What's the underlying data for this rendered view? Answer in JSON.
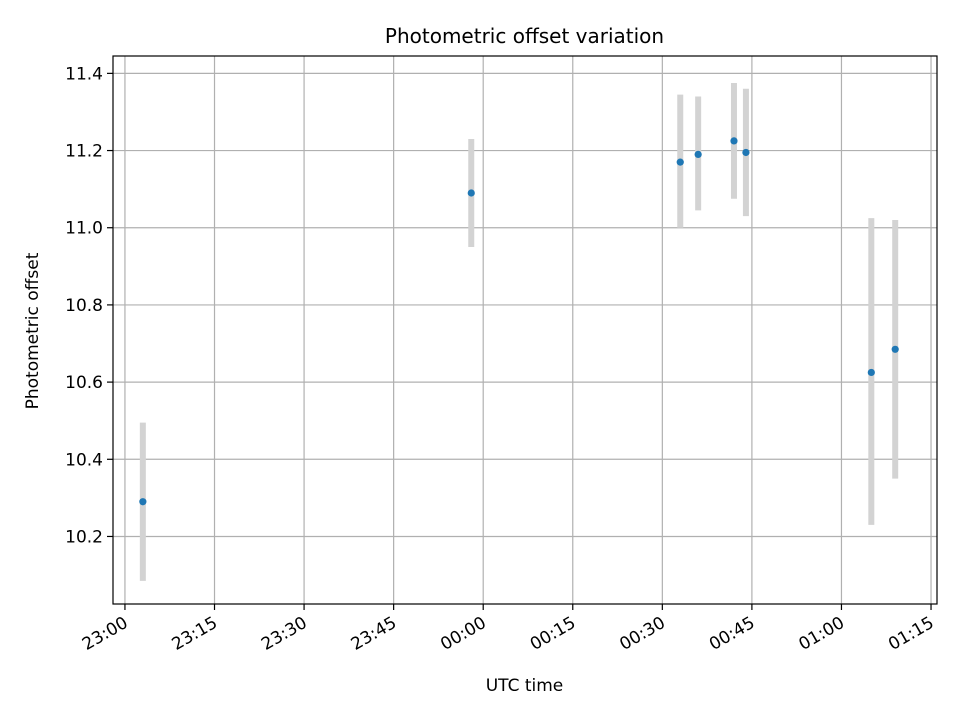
{
  "chart_data": {
    "type": "scatter",
    "title": "Photometric offset variation",
    "xlabel": "UTC time",
    "ylabel": "Photometric offset",
    "xlim": [
      "22:58",
      "01:16"
    ],
    "ylim": [
      10.025,
      11.445
    ],
    "x_ticks": [
      "23:00",
      "23:15",
      "23:30",
      "23:45",
      "00:00",
      "00:15",
      "00:30",
      "00:45",
      "01:00",
      "01:15"
    ],
    "y_ticks": [
      "10.2",
      "10.4",
      "10.6",
      "10.8",
      "11.0",
      "11.2",
      "11.4"
    ],
    "grid": true,
    "series": [
      {
        "x": [
          "23:03",
          "23:58",
          "00:33",
          "00:36",
          "00:42",
          "00:44",
          "01:05",
          "01:09"
        ],
        "y": [
          10.29,
          11.09,
          11.17,
          11.19,
          11.225,
          11.195,
          10.625,
          10.685
        ],
        "yerr_low": [
          10.085,
          10.95,
          11.0,
          11.045,
          11.075,
          11.03,
          10.23,
          10.35
        ],
        "yerr_high": [
          10.495,
          11.23,
          11.345,
          11.34,
          11.375,
          11.36,
          11.025,
          11.02
        ]
      }
    ],
    "colors": {
      "marker": "#1f77b4",
      "errorbar": "#d3d3d3",
      "grid": "#b0b0b0",
      "axis": "#000000"
    }
  }
}
